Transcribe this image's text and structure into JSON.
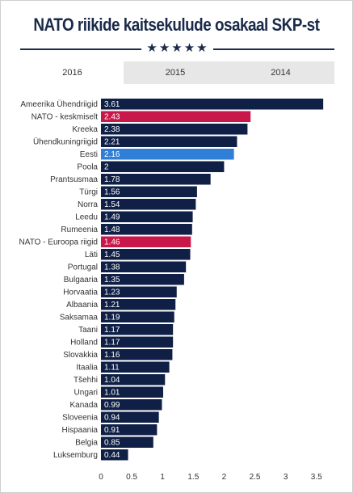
{
  "title": "NATO riikide kaitsekulude osakaal SKP-st",
  "stars": "★★★★★",
  "tabs": [
    {
      "label": "2016",
      "active": true
    },
    {
      "label": "2015",
      "active": false
    },
    {
      "label": "2014",
      "active": false
    }
  ],
  "colors": {
    "default": "#0f1f45",
    "nato_avg": "#c8174a",
    "estonia": "#2f7fd7"
  },
  "chart_data": {
    "type": "bar",
    "orientation": "horizontal",
    "categories": [
      "Ameerika Ühendriigid",
      "NATO - keskmiselt",
      "Kreeka",
      "Ühendkuningriigid",
      "Eesti",
      "Poola",
      "Prantsusmaa",
      "Türgi",
      "Norra",
      "Leedu",
      "Rumeenia",
      "NATO - Euroopa riigid",
      "Läti",
      "Portugal",
      "Bulgaaria",
      "Horvaatia",
      "Albaania",
      "Saksamaa",
      "Taani",
      "Holland",
      "Slovakkia",
      "Itaalia",
      "Tšehhi",
      "Ungari",
      "Kanada",
      "Sloveenia",
      "Hispaania",
      "Belgia",
      "Luksemburg"
    ],
    "values": [
      3.61,
      2.43,
      2.38,
      2.21,
      2.16,
      2,
      1.78,
      1.56,
      1.54,
      1.49,
      1.48,
      1.46,
      1.45,
      1.38,
      1.35,
      1.23,
      1.21,
      1.19,
      1.17,
      1.17,
      1.16,
      1.11,
      1.04,
      1.01,
      0.99,
      0.94,
      0.91,
      0.85,
      0.44
    ],
    "value_labels": [
      "3.61",
      "2.43",
      "2.38",
      "2.21",
      "2.16",
      "2",
      "1.78",
      "1.56",
      "1.54",
      "1.49",
      "1.48",
      "1.46",
      "1.45",
      "1.38",
      "1.35",
      "1.23",
      "1.21",
      "1.19",
      "1.17",
      "1.17",
      "1.16",
      "1.11",
      "1.04",
      "1.01",
      "0.99",
      "0.94",
      "0.91",
      "0.85",
      "0.44"
    ],
    "highlight": {
      "NATO - keskmiselt": "nato_avg",
      "NATO - Euroopa riigid": "nato_avg",
      "Eesti": "estonia"
    },
    "xlim": [
      0,
      3.7
    ],
    "xticks": [
      0,
      0.5,
      1,
      1.5,
      2,
      2.5,
      3,
      3.5
    ],
    "xtick_labels": [
      "0",
      "0.5",
      "1",
      "1.5",
      "2",
      "2.5",
      "3",
      "3.5"
    ],
    "grid": false,
    "legend": "none"
  }
}
